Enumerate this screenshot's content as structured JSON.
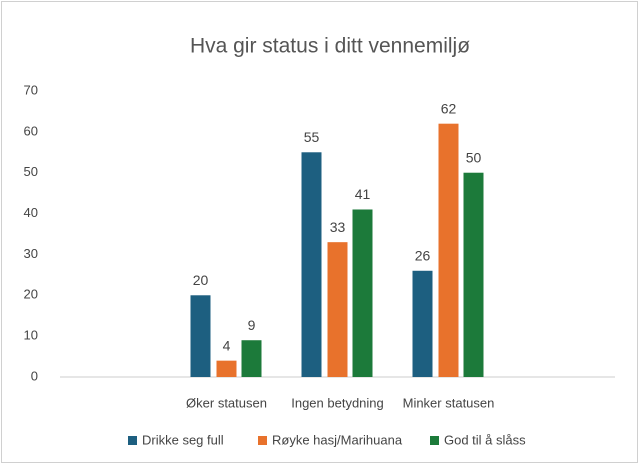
{
  "chart_data": {
    "type": "bar",
    "title": "Hva gir status i ditt vennemiljø",
    "categories": [
      null,
      "Øker statusen",
      "Ingen betydning",
      "Minker statusen",
      null
    ],
    "series": [
      {
        "name": "Drikke seg full",
        "color": "#1d5f80",
        "values": [
          null,
          20,
          55,
          26,
          null
        ]
      },
      {
        "name": "Røyke hasj/Marihuana",
        "color": "#e8722c",
        "values": [
          null,
          4,
          33,
          62,
          null
        ]
      },
      {
        "name": "God til å slåss",
        "color": "#1c7a3a",
        "values": [
          null,
          9,
          41,
          50,
          null
        ]
      }
    ],
    "ylim": [
      0,
      70
    ],
    "yticks": [
      0,
      10,
      20,
      30,
      40,
      50,
      60,
      70
    ],
    "grid": false,
    "legend": "bottom"
  }
}
